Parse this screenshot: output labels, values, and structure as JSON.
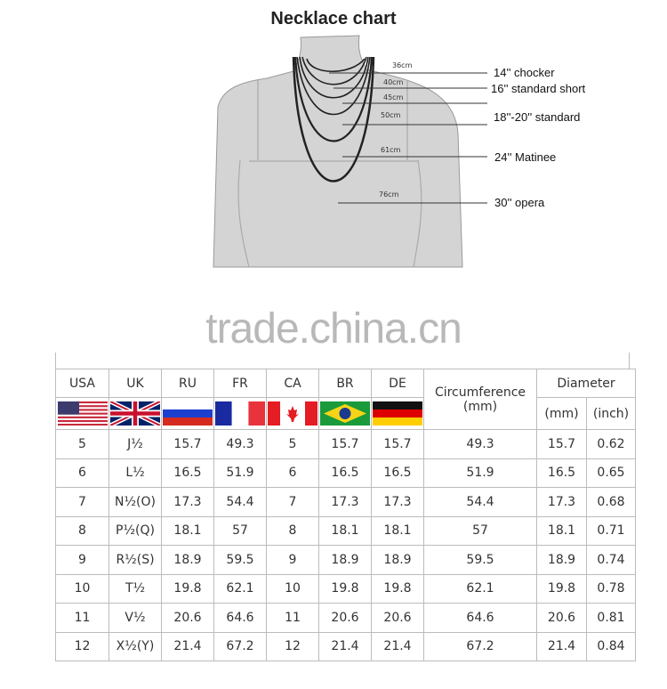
{
  "title": "Necklace chart",
  "necklaces": [
    {
      "cm": "36cm",
      "label": "14'' chocker"
    },
    {
      "cm": "40cm",
      "label": "16'' standard short"
    },
    {
      "cm": "45cm",
      "label": ""
    },
    {
      "cm": "50cm",
      "label": "18''-20'' standard"
    },
    {
      "cm": "61cm",
      "label": "24'' Matinee"
    },
    {
      "cm": "76cm",
      "label": "30'' opera"
    }
  ],
  "watermark": "trade.china.cn",
  "table": {
    "headers": [
      "USA",
      "UK",
      "RU",
      "FR",
      "CA",
      "BR",
      "DE"
    ],
    "circumference": "Circumference\n(mm)",
    "circ_line1": "Circumference",
    "circ_line2": "(mm)",
    "diameter": "Diameter",
    "diameter_mm": "(mm)",
    "diameter_inch": "(inch)",
    "flags": [
      "usa-flag",
      "uk-flag",
      "russia-flag",
      "france-flag",
      "canada-flag",
      "brazil-flag",
      "germany-flag"
    ],
    "rows": [
      [
        "5",
        "J½",
        "15.7",
        "49.3",
        "5",
        "15.7",
        "15.7",
        "49.3",
        "15.7",
        "0.62"
      ],
      [
        "6",
        "L½",
        "16.5",
        "51.9",
        "6",
        "16.5",
        "16.5",
        "51.9",
        "16.5",
        "0.65"
      ],
      [
        "7",
        "N½(O)",
        "17.3",
        "54.4",
        "7",
        "17.3",
        "17.3",
        "54.4",
        "17.3",
        "0.68"
      ],
      [
        "8",
        "P½(Q)",
        "18.1",
        "57",
        "8",
        "18.1",
        "18.1",
        "57",
        "18.1",
        "0.71"
      ],
      [
        "9",
        "R½(S)",
        "18.9",
        "59.5",
        "9",
        "18.9",
        "18.9",
        "59.5",
        "18.9",
        "0.74"
      ],
      [
        "10",
        "T½",
        "19.8",
        "62.1",
        "10",
        "19.8",
        "19.8",
        "62.1",
        "19.8",
        "0.78"
      ],
      [
        "11",
        "V½",
        "20.6",
        "64.6",
        "11",
        "20.6",
        "20.6",
        "64.6",
        "20.6",
        "0.81"
      ],
      [
        "12",
        "X½(Y)",
        "21.4",
        "67.2",
        "12",
        "21.4",
        "21.4",
        "67.2",
        "21.4",
        "0.84"
      ]
    ]
  }
}
